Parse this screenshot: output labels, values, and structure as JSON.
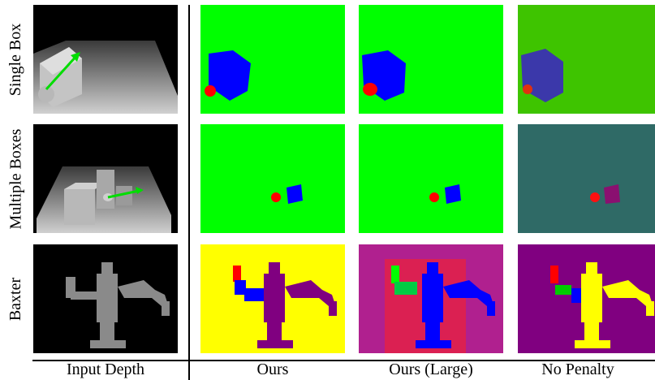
{
  "rows": [
    {
      "label": "Single Box"
    },
    {
      "label": "Multiple Boxes"
    },
    {
      "label": "Baxter"
    }
  ],
  "columns": [
    {
      "label": "Input Depth"
    },
    {
      "label": "Ours"
    },
    {
      "label": "Ours (Large)"
    },
    {
      "label": "No Penalty"
    }
  ],
  "colors": {
    "green_background": "#00ff00",
    "olive_background": "#3ec400",
    "teal_background": "#2f6a66",
    "blue_object": "#0000ff",
    "red_point": "#ff0000",
    "yellow_background": "#ffff00",
    "purple_robot": "#800080",
    "magenta_background": "#b0208f"
  }
}
